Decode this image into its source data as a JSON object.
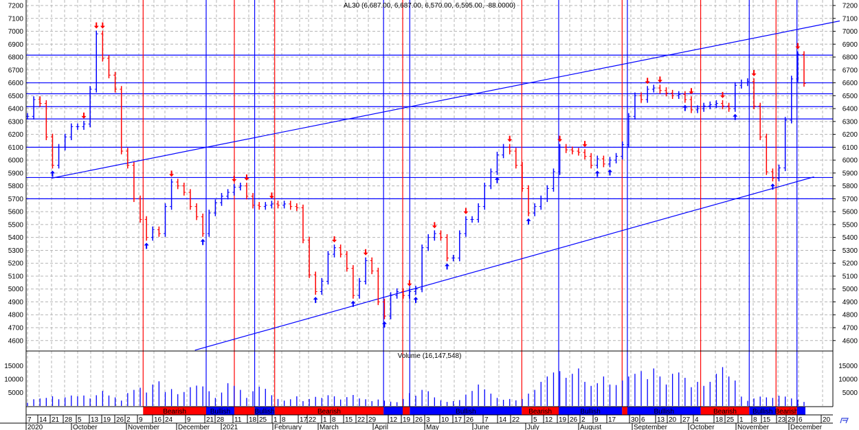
{
  "chart_data": {
    "type": "ohlc-bar",
    "title": "AL30 (6,687.00, 6,687.00, 6,570.00, 6,595.00, -88.0000)",
    "ylim": [
      4500,
      7200
    ],
    "y_ticks": [
      7200,
      7100,
      7000,
      6900,
      6800,
      6700,
      6600,
      6500,
      6400,
      6300,
      6200,
      6100,
      6000,
      5900,
      5800,
      5700,
      5600,
      5500,
      5400,
      5300,
      5200,
      5100,
      5000,
      4900,
      4800,
      4700,
      4600
    ],
    "grid": true,
    "colors": {
      "up": "#0000ff",
      "down": "#ff0000",
      "bullish": "#0000ff",
      "bearish": "#ff0000",
      "grid": "#b4b4b4"
    },
    "close": [
      6340,
      6470,
      6440,
      6180,
      5960,
      6100,
      6180,
      6260,
      6260,
      6280,
      6550,
      6980,
      6790,
      6660,
      6550,
      6070,
      5960,
      5700,
      5540,
      5400,
      5460,
      5430,
      5640,
      5830,
      5800,
      5750,
      5640,
      5560,
      5430,
      5590,
      5670,
      5720,
      5750,
      5790,
      5800,
      5720,
      5650,
      5640,
      5650,
      5660,
      5650,
      5660,
      5640,
      5630,
      5380,
      5110,
      4980,
      5060,
      5270,
      5320,
      5270,
      5160,
      4950,
      5060,
      5220,
      5140,
      4900,
      4790,
      4950,
      4980,
      4950,
      4980,
      5000,
      5320,
      5400,
      5430,
      5400,
      5240,
      5240,
      5430,
      5540,
      5540,
      5640,
      5800,
      5910,
      6040,
      6100,
      6070,
      5960,
      5780,
      5590,
      5640,
      5700,
      5780,
      5910,
      6100,
      6080,
      6070,
      6060,
      6030,
      5960,
      6010,
      5970,
      6000,
      6030,
      6120,
      6340,
      6500,
      6470,
      6550,
      6560,
      6540,
      6520,
      6500,
      6510,
      6470,
      6390,
      6400,
      6420,
      6430,
      6440,
      6420,
      6400,
      6580,
      6600,
      6610,
      6420,
      6180,
      5910,
      5860,
      5940,
      6310,
      6630,
      6820,
      6595
    ],
    "signals": [
      {
        "bar": 4,
        "dir": "up"
      },
      {
        "bar": 9,
        "dir": "down"
      },
      {
        "bar": 11,
        "dir": "down"
      },
      {
        "bar": 12,
        "dir": "down"
      },
      {
        "bar": 19,
        "dir": "up"
      },
      {
        "bar": 23,
        "dir": "down"
      },
      {
        "bar": 28,
        "dir": "up"
      },
      {
        "bar": 33,
        "dir": "down"
      },
      {
        "bar": 35,
        "dir": "down"
      },
      {
        "bar": 39,
        "dir": "down"
      },
      {
        "bar": 46,
        "dir": "up"
      },
      {
        "bar": 49,
        "dir": "down"
      },
      {
        "bar": 52,
        "dir": "up"
      },
      {
        "bar": 54,
        "dir": "down"
      },
      {
        "bar": 57,
        "dir": "up"
      },
      {
        "bar": 61,
        "dir": "down"
      },
      {
        "bar": 62,
        "dir": "up"
      },
      {
        "bar": 65,
        "dir": "down"
      },
      {
        "bar": 67,
        "dir": "up"
      },
      {
        "bar": 70,
        "dir": "down"
      },
      {
        "bar": 75,
        "dir": "up"
      },
      {
        "bar": 77,
        "dir": "down"
      },
      {
        "bar": 80,
        "dir": "up"
      },
      {
        "bar": 85,
        "dir": "down"
      },
      {
        "bar": 89,
        "dir": "down"
      },
      {
        "bar": 91,
        "dir": "up"
      },
      {
        "bar": 93,
        "dir": "up"
      },
      {
        "bar": 99,
        "dir": "down"
      },
      {
        "bar": 101,
        "dir": "down"
      },
      {
        "bar": 105,
        "dir": "up"
      },
      {
        "bar": 106,
        "dir": "down"
      },
      {
        "bar": 111,
        "dir": "down"
      },
      {
        "bar": 113,
        "dir": "up"
      },
      {
        "bar": 116,
        "dir": "down"
      },
      {
        "bar": 119,
        "dir": "up"
      },
      {
        "bar": 123,
        "dir": "down"
      }
    ],
    "horizontal_levels": [
      6815,
      6600,
      6515,
      6415,
      6320,
      6100,
      5865,
      5700
    ],
    "trend_lines": [
      {
        "from": [
          "2020-09-21",
          5860
        ],
        "to": [
          "2021-12-30",
          7080
        ]
      },
      {
        "from": [
          "2020-12-14",
          4525
        ],
        "to": [
          "2021-12-15",
          5870
        ]
      }
    ],
    "volume": {
      "label": "Volume (16,147,548)",
      "y_ticks": [
        15000,
        10000,
        5000
      ],
      "ylim": [
        0,
        15000
      ],
      "values": [
        1200,
        2500,
        2800,
        3000,
        3600,
        2500,
        3200,
        3900,
        3600,
        3900,
        2800,
        4000,
        5600,
        3900,
        3200,
        2000,
        4800,
        6000,
        6800,
        5000,
        8000,
        9200,
        5200,
        6300,
        4400,
        5200,
        7000,
        7600,
        7300,
        5500,
        3000,
        5000,
        8500,
        7500,
        6000,
        3000,
        5500,
        7200,
        6400,
        4000,
        2600,
        2000,
        2500,
        3600,
        1800,
        2600,
        3400,
        3000,
        4000,
        3600,
        2400,
        3300,
        4100,
        2800,
        2500,
        1800,
        2400,
        2000,
        1600,
        1400,
        2600,
        4800,
        3800,
        6000,
        5500,
        3200,
        2100,
        1500,
        1800,
        2200,
        4200,
        5600,
        8000,
        6200,
        4600,
        3000,
        2300,
        2600,
        2100,
        2600,
        4600,
        6000,
        9000,
        11000,
        12500,
        13000,
        10500,
        12000,
        14000,
        9000,
        7500,
        8500,
        11000,
        8000,
        7800,
        9500,
        11000,
        12000,
        13000,
        10000,
        14000,
        11000,
        8000,
        12000,
        12500,
        10500,
        7000,
        9000,
        7500,
        9000,
        12000,
        14500,
        11000,
        9500,
        3500,
        1900,
        2800,
        3500,
        3200,
        3000,
        3800,
        3500,
        2800,
        2300,
        1500
      ]
    },
    "sentiment": [
      {
        "state": "bearish",
        "label": "Bearish",
        "from": "2020-11-11",
        "to": "2020-12-21"
      },
      {
        "state": "bullish",
        "label": "Bullish",
        "from": "2020-12-21",
        "to": "2021-01-11"
      },
      {
        "state": "bearish",
        "label": "",
        "from": "2021-01-11",
        "to": "2021-01-22"
      },
      {
        "state": "bullish",
        "label": "Bullish",
        "from": "2021-01-22",
        "to": "2021-02-02"
      },
      {
        "state": "bearish",
        "label": "Bearish",
        "from": "2021-02-02",
        "to": "2021-04-08"
      },
      {
        "state": "bullish",
        "label": "",
        "from": "2021-04-08",
        "to": "2021-04-19"
      },
      {
        "state": "bearish",
        "label": "",
        "from": "2021-04-19",
        "to": "2021-04-23"
      },
      {
        "state": "bullish",
        "label": "Bullish",
        "from": "2021-04-23",
        "to": "2021-06-28"
      },
      {
        "state": "bearish",
        "label": "Bearish",
        "from": "2021-06-28",
        "to": "2021-07-19"
      },
      {
        "state": "bullish",
        "label": "Bullish",
        "from": "2021-07-19",
        "to": "2021-08-25"
      },
      {
        "state": "bearish",
        "label": "",
        "from": "2021-08-25",
        "to": "2021-08-28"
      },
      {
        "state": "bullish",
        "label": "Bullish",
        "from": "2021-08-28",
        "to": "2021-10-08"
      },
      {
        "state": "bearish",
        "label": "Bearish",
        "from": "2021-10-08",
        "to": "2021-11-06"
      },
      {
        "state": "bullish",
        "label": "Bullish",
        "from": "2021-11-06",
        "to": "2021-11-22"
      },
      {
        "state": "bearish",
        "label": "Bearish",
        "from": "2021-11-22",
        "to": "2021-12-05"
      },
      {
        "state": "bullish",
        "label": "",
        "from": "2021-12-05",
        "to": "2021-12-10"
      }
    ],
    "x_ticks": [
      {
        "date": "2020-09-07",
        "label": "7"
      },
      {
        "date": "2020-09-14",
        "label": "14"
      },
      {
        "date": "2020-09-21",
        "label": "21"
      },
      {
        "date": "2020-09-28",
        "label": "28"
      },
      {
        "date": "2020-10-05",
        "label": "5"
      },
      {
        "date": "2020-10-13",
        "label": "13"
      },
      {
        "date": "2020-10-19",
        "label": "19"
      },
      {
        "date": "2020-10-26",
        "label": "26"
      },
      {
        "date": "2020-11-02",
        "label": "2"
      },
      {
        "date": "2020-11-09",
        "label": "9"
      },
      {
        "date": "2020-11-16",
        "label": "16"
      },
      {
        "date": "2020-11-24",
        "label": "24"
      },
      {
        "date": "2020-12-09",
        "label": "9"
      },
      {
        "date": "2020-12-21",
        "label": "21"
      },
      {
        "date": "2020-12-28",
        "label": "28"
      },
      {
        "date": "2021-01-11",
        "label": "11"
      },
      {
        "date": "2021-01-18",
        "label": "18"
      },
      {
        "date": "2021-01-25",
        "label": "25"
      },
      {
        "date": "2021-02-01",
        "label": "1"
      },
      {
        "date": "2021-02-08",
        "label": "8"
      },
      {
        "date": "2021-02-17",
        "label": "17"
      },
      {
        "date": "2021-02-22",
        "label": "22"
      },
      {
        "date": "2021-03-01",
        "label": "1"
      },
      {
        "date": "2021-03-08",
        "label": "8"
      },
      {
        "date": "2021-03-15",
        "label": "15"
      },
      {
        "date": "2021-03-22",
        "label": "22"
      },
      {
        "date": "2021-03-29",
        "label": "29"
      },
      {
        "date": "2021-04-12",
        "label": "12"
      },
      {
        "date": "2021-04-19",
        "label": "19"
      },
      {
        "date": "2021-04-26",
        "label": "26"
      },
      {
        "date": "2021-05-03",
        "label": "3"
      },
      {
        "date": "2021-05-10",
        "label": "10"
      },
      {
        "date": "2021-05-17",
        "label": "17"
      },
      {
        "date": "2021-05-26",
        "label": "26"
      },
      {
        "date": "2021-06-07",
        "label": "7"
      },
      {
        "date": "2021-06-14",
        "label": "14"
      },
      {
        "date": "2021-06-22",
        "label": "22"
      },
      {
        "date": "2021-07-05",
        "label": "5"
      },
      {
        "date": "2021-07-12",
        "label": "12"
      },
      {
        "date": "2021-07-19",
        "label": "19"
      },
      {
        "date": "2021-07-26",
        "label": "26"
      },
      {
        "date": "2021-08-02",
        "label": "2"
      },
      {
        "date": "2021-08-09",
        "label": "9"
      },
      {
        "date": "2021-08-17",
        "label": "17"
      },
      {
        "date": "2021-08-30",
        "label": "30"
      },
      {
        "date": "2021-09-06",
        "label": "6"
      },
      {
        "date": "2021-09-13",
        "label": "13"
      },
      {
        "date": "2021-09-20",
        "label": "20"
      },
      {
        "date": "2021-09-27",
        "label": "27"
      },
      {
        "date": "2021-10-04",
        "label": "4"
      },
      {
        "date": "2021-10-18",
        "label": "18"
      },
      {
        "date": "2021-10-25",
        "label": "25"
      },
      {
        "date": "2021-11-01",
        "label": "1"
      },
      {
        "date": "2021-11-08",
        "label": "8"
      },
      {
        "date": "2021-11-15",
        "label": "15"
      },
      {
        "date": "2021-11-23",
        "label": "23"
      },
      {
        "date": "2021-11-29",
        "label": "29"
      },
      {
        "date": "2021-12-06",
        "label": "6"
      },
      {
        "date": "2021-12-20",
        "label": "20"
      }
    ],
    "month_labels": [
      "2020",
      "October",
      "November",
      "December",
      "2021",
      "February",
      "March",
      "April",
      "May",
      "June",
      "July",
      "August",
      "September",
      "October",
      "November",
      "December"
    ]
  }
}
